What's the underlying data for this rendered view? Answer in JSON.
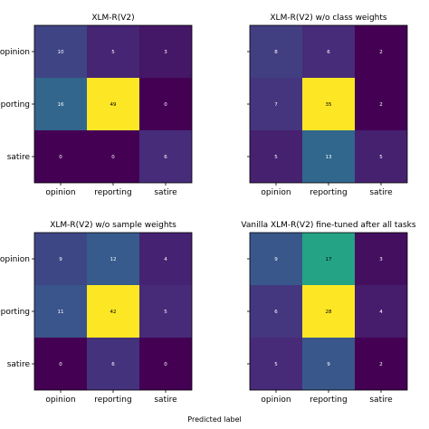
{
  "colormap": [
    "#440154",
    "#472d7b",
    "#3b528b",
    "#2c728e",
    "#21918c",
    "#28ae80",
    "#5ec962",
    "#addc30",
    "#fde725"
  ],
  "xlabel": "Predicted label",
  "chart_data": [
    {
      "type": "heatmap",
      "title": "XLM-R(V2)",
      "x_categories": [
        "opinion",
        "reporting",
        "satire"
      ],
      "y_categories": [
        "opinion",
        "reporting",
        "satire"
      ],
      "values": [
        [
          10,
          5,
          3
        ],
        [
          16,
          49,
          0
        ],
        [
          0,
          0,
          6
        ]
      ]
    },
    {
      "type": "heatmap",
      "title": "XLM-R(V2) w/o class weights",
      "x_categories": [
        "opinion",
        "reporting",
        "satire"
      ],
      "y_categories": [
        "opinion",
        "reporting",
        "satire"
      ],
      "values": [
        [
          8,
          6,
          2
        ],
        [
          7,
          35,
          2
        ],
        [
          5,
          13,
          5
        ]
      ]
    },
    {
      "type": "heatmap",
      "title": "XLM-R(V2) w/o sample weights",
      "x_categories": [
        "opinion",
        "reporting",
        "satire"
      ],
      "y_categories": [
        "opinion",
        "reporting",
        "satire"
      ],
      "values": [
        [
          9,
          12,
          4
        ],
        [
          11,
          42,
          5
        ],
        [
          0,
          6,
          0
        ]
      ]
    },
    {
      "type": "heatmap",
      "title": "Vanilla XLM-R(V2) fine-tuned after all tasks",
      "x_categories": [
        "opinion",
        "reporting",
        "satire"
      ],
      "y_categories": [
        "opinion",
        "reporting",
        "satire"
      ],
      "values": [
        [
          9,
          17,
          3
        ],
        [
          6,
          28,
          4
        ],
        [
          5,
          9,
          2
        ]
      ]
    }
  ]
}
